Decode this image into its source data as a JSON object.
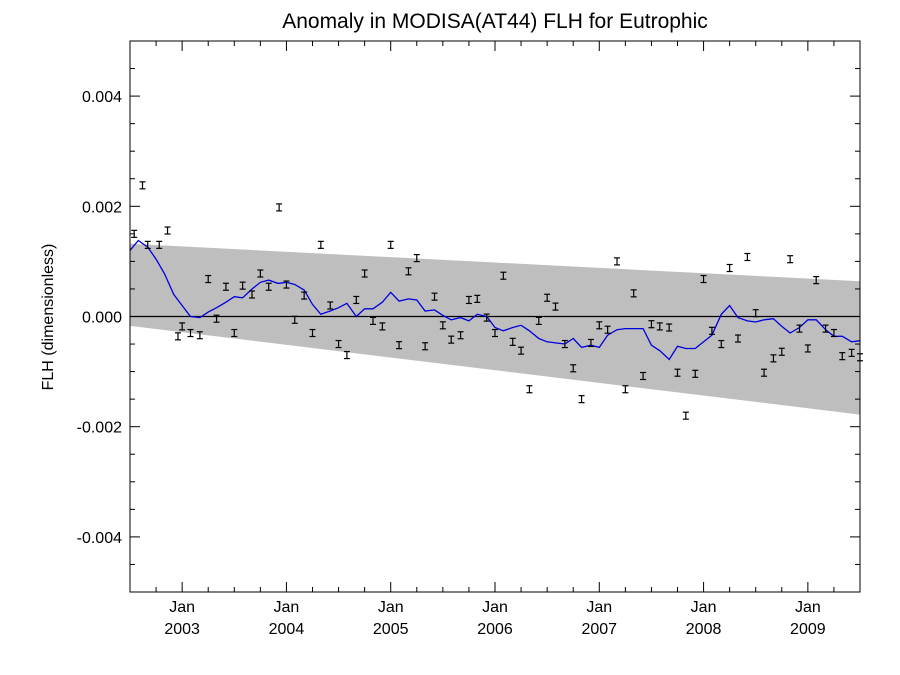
{
  "chart_data": {
    "type": "line",
    "title": "Anomaly in MODISA(AT44) FLH for Eutrophic",
    "xlabel": "",
    "ylabel": "FLH (dimensionless)",
    "xlim": [
      2002.5,
      2009.5
    ],
    "ylim": [
      -0.005,
      0.005
    ],
    "yticks": [
      {
        "value": 0.004,
        "label": "0.004"
      },
      {
        "value": 0.002,
        "label": "0.002"
      },
      {
        "value": 0.0,
        "label": "0.000"
      },
      {
        "value": -0.002,
        "label": "-0.002"
      },
      {
        "value": -0.004,
        "label": "-0.004"
      }
    ],
    "xticks": [
      {
        "value": 2003.0,
        "month": "Jan",
        "year": "2003"
      },
      {
        "value": 2004.0,
        "month": "Jan",
        "year": "2004"
      },
      {
        "value": 2005.0,
        "month": "Jan",
        "year": "2005"
      },
      {
        "value": 2006.0,
        "month": "Jan",
        "year": "2006"
      },
      {
        "value": 2007.0,
        "month": "Jan",
        "year": "2007"
      },
      {
        "value": 2008.0,
        "month": "Jan",
        "year": "2008"
      },
      {
        "value": 2009.0,
        "month": "Jan",
        "year": "2009"
      }
    ],
    "grid": false,
    "zero_line": true,
    "band": {
      "x": [
        2002.5,
        2009.5
      ],
      "upper": [
        0.00132,
        0.00064
      ],
      "lower": [
        -0.00017,
        -0.00178
      ],
      "color": "#bebebe"
    },
    "series": [
      {
        "kind": "errorbar-points",
        "color": "#000000",
        "points": [
          [
            2002.54,
            0.0015
          ],
          [
            2002.62,
            0.00238
          ],
          [
            2002.67,
            0.0013
          ],
          [
            2002.78,
            0.0013
          ],
          [
            2002.86,
            0.00156
          ],
          [
            2002.96,
            -0.00036
          ],
          [
            2003.0,
            -0.00018
          ],
          [
            2003.08,
            -0.0003
          ],
          [
            2003.17,
            -0.00034
          ],
          [
            2003.25,
            0.00068
          ],
          [
            2003.33,
            -4e-05
          ],
          [
            2003.42,
            0.00054
          ],
          [
            2003.5,
            -0.0003
          ],
          [
            2003.58,
            0.00056
          ],
          [
            2003.67,
            0.0004
          ],
          [
            2003.75,
            0.00078
          ],
          [
            2003.83,
            0.00054
          ],
          [
            2003.93,
            0.00198
          ],
          [
            2004.0,
            0.00058
          ],
          [
            2004.08,
            -6e-05
          ],
          [
            2004.17,
            0.00038
          ],
          [
            2004.25,
            -0.0003
          ],
          [
            2004.33,
            0.0013
          ],
          [
            2004.42,
            0.0002
          ],
          [
            2004.5,
            -0.0005
          ],
          [
            2004.58,
            -0.0007
          ],
          [
            2004.67,
            0.0003
          ],
          [
            2004.75,
            0.00078
          ],
          [
            2004.83,
            -8e-05
          ],
          [
            2004.92,
            -0.00018
          ],
          [
            2005.0,
            0.0013
          ],
          [
            2005.08,
            -0.00052
          ],
          [
            2005.17,
            0.00082
          ],
          [
            2005.25,
            0.00106
          ],
          [
            2005.33,
            -0.00054
          ],
          [
            2005.42,
            0.00036
          ],
          [
            2005.5,
            -0.00016
          ],
          [
            2005.58,
            -0.00042
          ],
          [
            2005.67,
            -0.00034
          ],
          [
            2005.75,
            0.0003
          ],
          [
            2005.83,
            0.00032
          ],
          [
            2005.92,
            -2e-05
          ],
          [
            2006.0,
            -0.0003
          ],
          [
            2006.08,
            0.00074
          ],
          [
            2006.17,
            -0.00046
          ],
          [
            2006.25,
            -0.00062
          ],
          [
            2006.33,
            -0.00132
          ],
          [
            2006.42,
            -8e-05
          ],
          [
            2006.5,
            0.00034
          ],
          [
            2006.58,
            0.00018
          ],
          [
            2006.67,
            -0.0005
          ],
          [
            2006.75,
            -0.00094
          ],
          [
            2006.83,
            -0.0015
          ],
          [
            2006.92,
            -0.00048
          ],
          [
            2007.0,
            -0.00016
          ],
          [
            2007.08,
            -0.00024
          ],
          [
            2007.17,
            0.001
          ],
          [
            2007.25,
            -0.00132
          ],
          [
            2007.33,
            0.00042
          ],
          [
            2007.42,
            -0.00108
          ],
          [
            2007.5,
            -0.00014
          ],
          [
            2007.58,
            -0.00018
          ],
          [
            2007.67,
            -0.0002
          ],
          [
            2007.75,
            -0.00102
          ],
          [
            2007.83,
            -0.0018
          ],
          [
            2007.92,
            -0.00104
          ],
          [
            2008.0,
            0.00068
          ],
          [
            2008.08,
            -0.00026
          ],
          [
            2008.17,
            -0.0005
          ],
          [
            2008.25,
            0.00088
          ],
          [
            2008.33,
            -0.0004
          ],
          [
            2008.42,
            0.00108
          ],
          [
            2008.5,
            6e-05
          ],
          [
            2008.58,
            -0.00102
          ],
          [
            2008.67,
            -0.00076
          ],
          [
            2008.75,
            -0.00064
          ],
          [
            2008.83,
            0.00104
          ],
          [
            2008.92,
            -0.00022
          ],
          [
            2009.0,
            -0.00058
          ],
          [
            2009.08,
            0.00066
          ],
          [
            2009.17,
            -0.00022
          ],
          [
            2009.25,
            -0.0003
          ],
          [
            2009.33,
            -0.00072
          ],
          [
            2009.42,
            -0.00066
          ],
          [
            2009.5,
            -0.00074
          ]
        ]
      },
      {
        "kind": "line",
        "color": "#0000dd",
        "x": [
          2002.5,
          2002.58,
          2002.67,
          2002.75,
          2002.83,
          2002.92,
          2003.0,
          2003.08,
          2003.17,
          2003.25,
          2003.33,
          2003.42,
          2003.5,
          2003.58,
          2003.67,
          2003.75,
          2003.83,
          2003.92,
          2004.0,
          2004.08,
          2004.17,
          2004.25,
          2004.33,
          2004.42,
          2004.5,
          2004.58,
          2004.67,
          2004.75,
          2004.83,
          2004.92,
          2005.0,
          2005.08,
          2005.17,
          2005.25,
          2005.33,
          2005.42,
          2005.5,
          2005.58,
          2005.67,
          2005.75,
          2005.83,
          2005.92,
          2006.0,
          2006.08,
          2006.17,
          2006.25,
          2006.33,
          2006.42,
          2006.5,
          2006.58,
          2006.67,
          2006.75,
          2006.83,
          2006.92,
          2007.0,
          2007.08,
          2007.17,
          2007.25,
          2007.33,
          2007.42,
          2007.5,
          2007.58,
          2007.67,
          2007.75,
          2007.83,
          2007.92,
          2008.0,
          2008.08,
          2008.17,
          2008.25,
          2008.33,
          2008.42,
          2008.5,
          2008.58,
          2008.67,
          2008.75,
          2008.83,
          2008.92,
          2009.0,
          2009.08,
          2009.17,
          2009.25,
          2009.33,
          2009.42,
          2009.5
        ],
        "y": [
          0.0012,
          0.00138,
          0.00126,
          0.00104,
          0.00078,
          0.0004,
          0.0002,
          0.0,
          -2e-05,
          8e-05,
          0.00016,
          0.00026,
          0.00036,
          0.00034,
          0.0005,
          0.00062,
          0.00066,
          0.0006,
          0.00062,
          0.00058,
          0.00048,
          0.00022,
          4e-05,
          0.0001,
          0.00016,
          0.00024,
          0.0,
          0.00014,
          0.00014,
          0.00026,
          0.00044,
          0.00028,
          0.00032,
          0.0003,
          0.0001,
          0.00012,
          2e-05,
          -6e-05,
          -2e-05,
          -8e-05,
          4e-05,
          0.0,
          -0.0002,
          -0.00026,
          -0.0002,
          -0.00016,
          -0.00026,
          -0.0004,
          -0.00046,
          -0.00048,
          -0.0005,
          -0.0004,
          -0.00056,
          -0.00052,
          -0.00056,
          -0.00034,
          -0.00024,
          -0.00022,
          -0.00022,
          -0.00022,
          -0.00052,
          -0.00062,
          -0.00078,
          -0.00054,
          -0.00058,
          -0.00058,
          -0.00046,
          -0.00034,
          4e-05,
          0.0002,
          -2e-05,
          -8e-05,
          -0.0001,
          -6e-05,
          -4e-05,
          -0.00018,
          -0.0003,
          -0.0002,
          -6e-05,
          -6e-05,
          -0.00024,
          -0.00036,
          -0.00036,
          -0.00046,
          -0.00044
        ]
      }
    ]
  }
}
